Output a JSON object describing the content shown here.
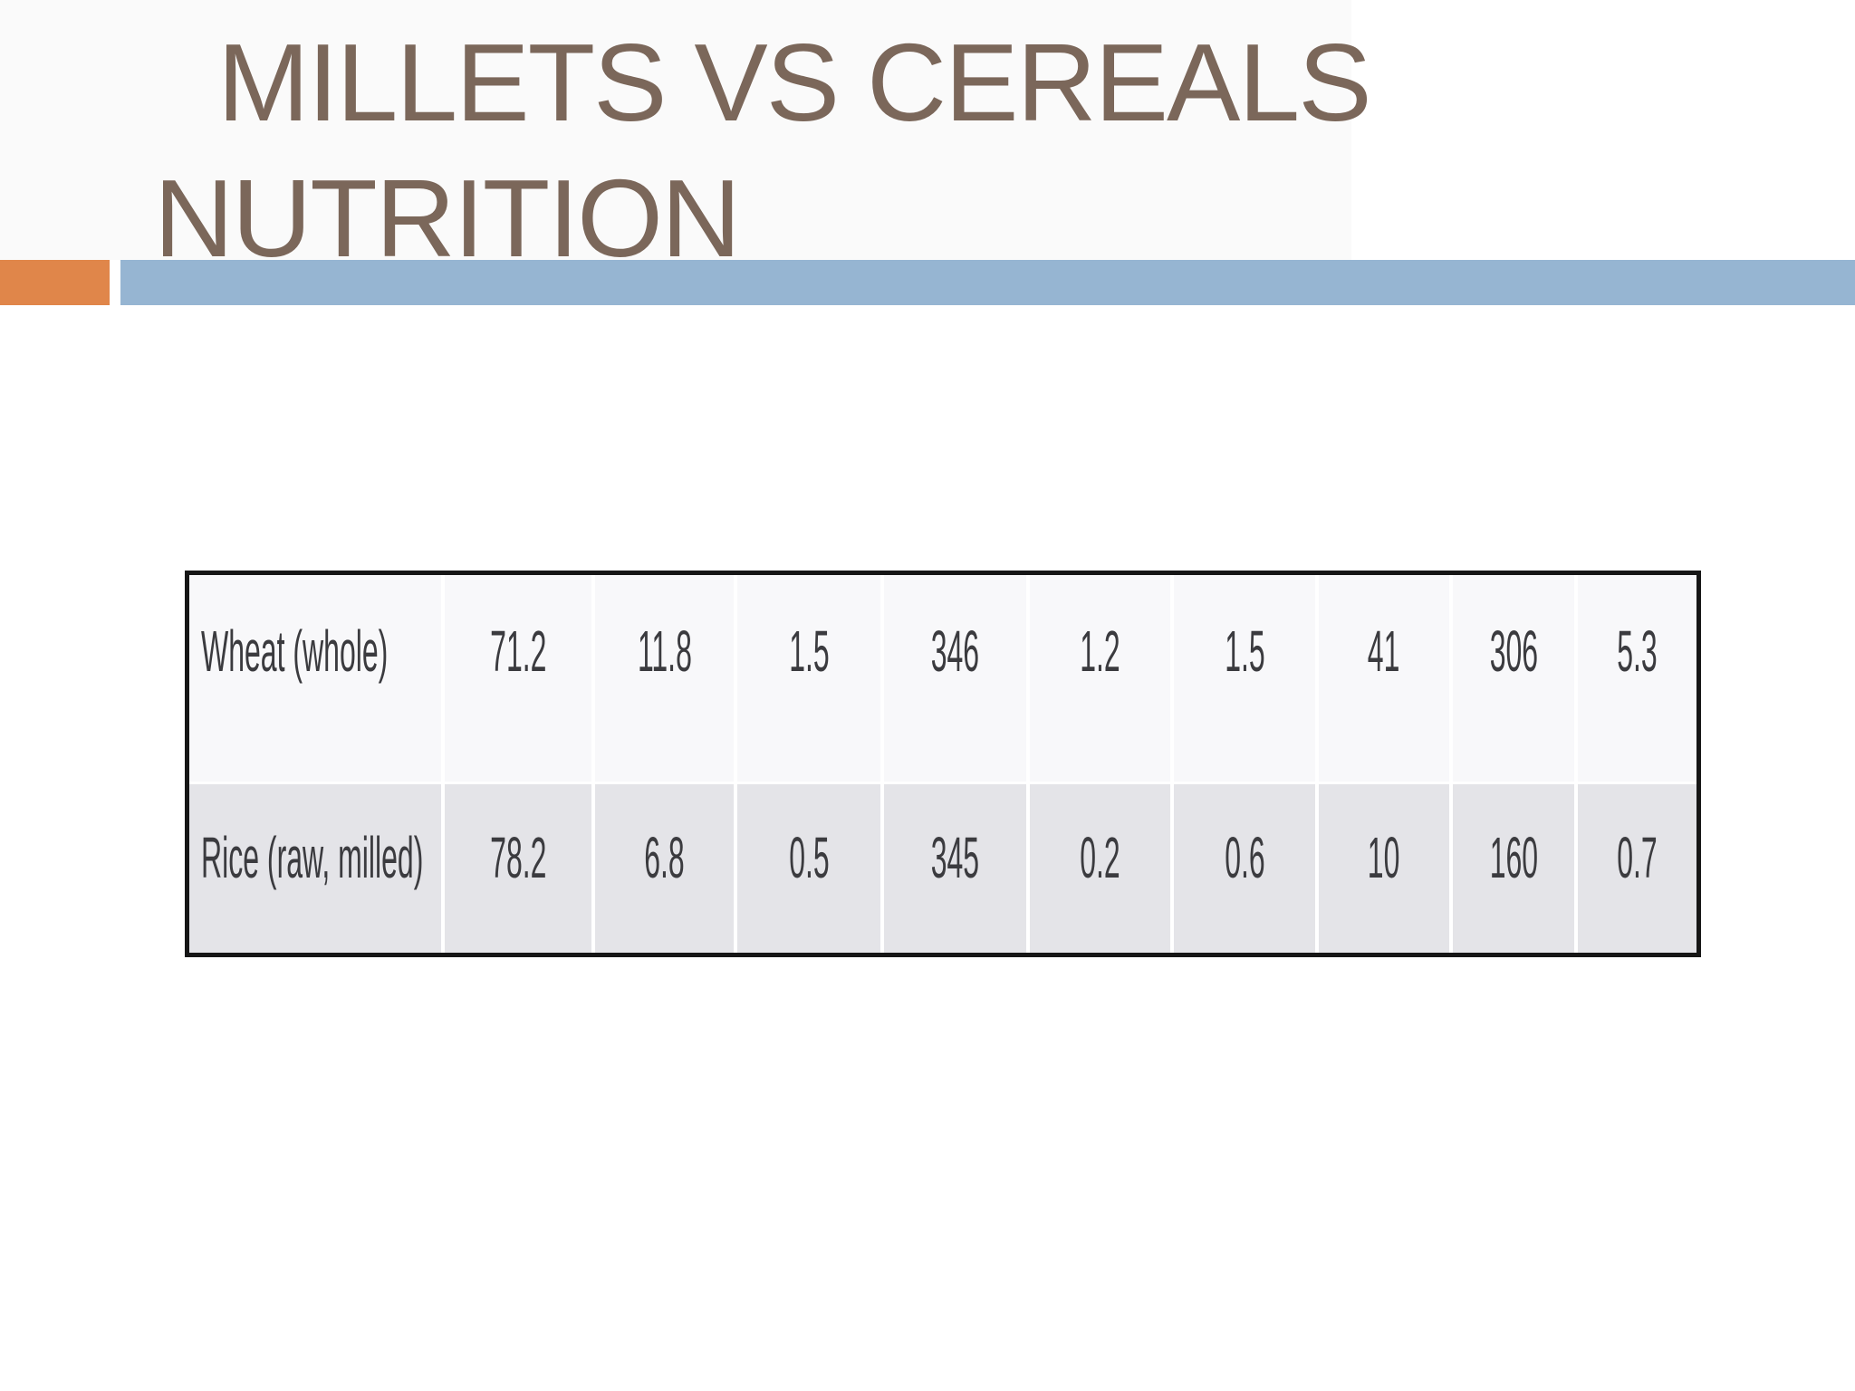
{
  "slide": {
    "title_line1": "MILLETS VS CEREALS",
    "title_line2": "NUTRITION"
  },
  "accents": {
    "orange_block_color": "#e0864a",
    "blue_bar_color": "#96b5d2",
    "title_text_color": "#7b675a"
  },
  "table": {
    "colors": {
      "outer_border": "#161616",
      "row1_background": "#f8f8fa",
      "row2_background": "#e4e4e8",
      "divider": "#ffffff",
      "text": "#3b3b3f"
    },
    "rows": [
      {
        "label": "Wheat (whole)",
        "values": [
          "71.2",
          "11.8",
          "1.5",
          "346",
          "1.2",
          "1.5",
          "41",
          "306",
          "5.3"
        ]
      },
      {
        "label": "Rice (raw, milled)",
        "values": [
          "78.2",
          "6.8",
          "0.5",
          "345",
          "0.2",
          "0.6",
          "10",
          "160",
          "0.7"
        ]
      }
    ]
  },
  "chart_data": {
    "type": "table",
    "column_headers": [],
    "rows": [
      [
        "Wheat (whole)",
        71.2,
        11.8,
        1.5,
        346,
        1.2,
        1.5,
        41,
        306,
        5.3
      ],
      [
        "Rice (raw, milled)",
        78.2,
        6.8,
        0.5,
        345,
        0.2,
        0.6,
        10,
        160,
        0.7
      ]
    ]
  }
}
